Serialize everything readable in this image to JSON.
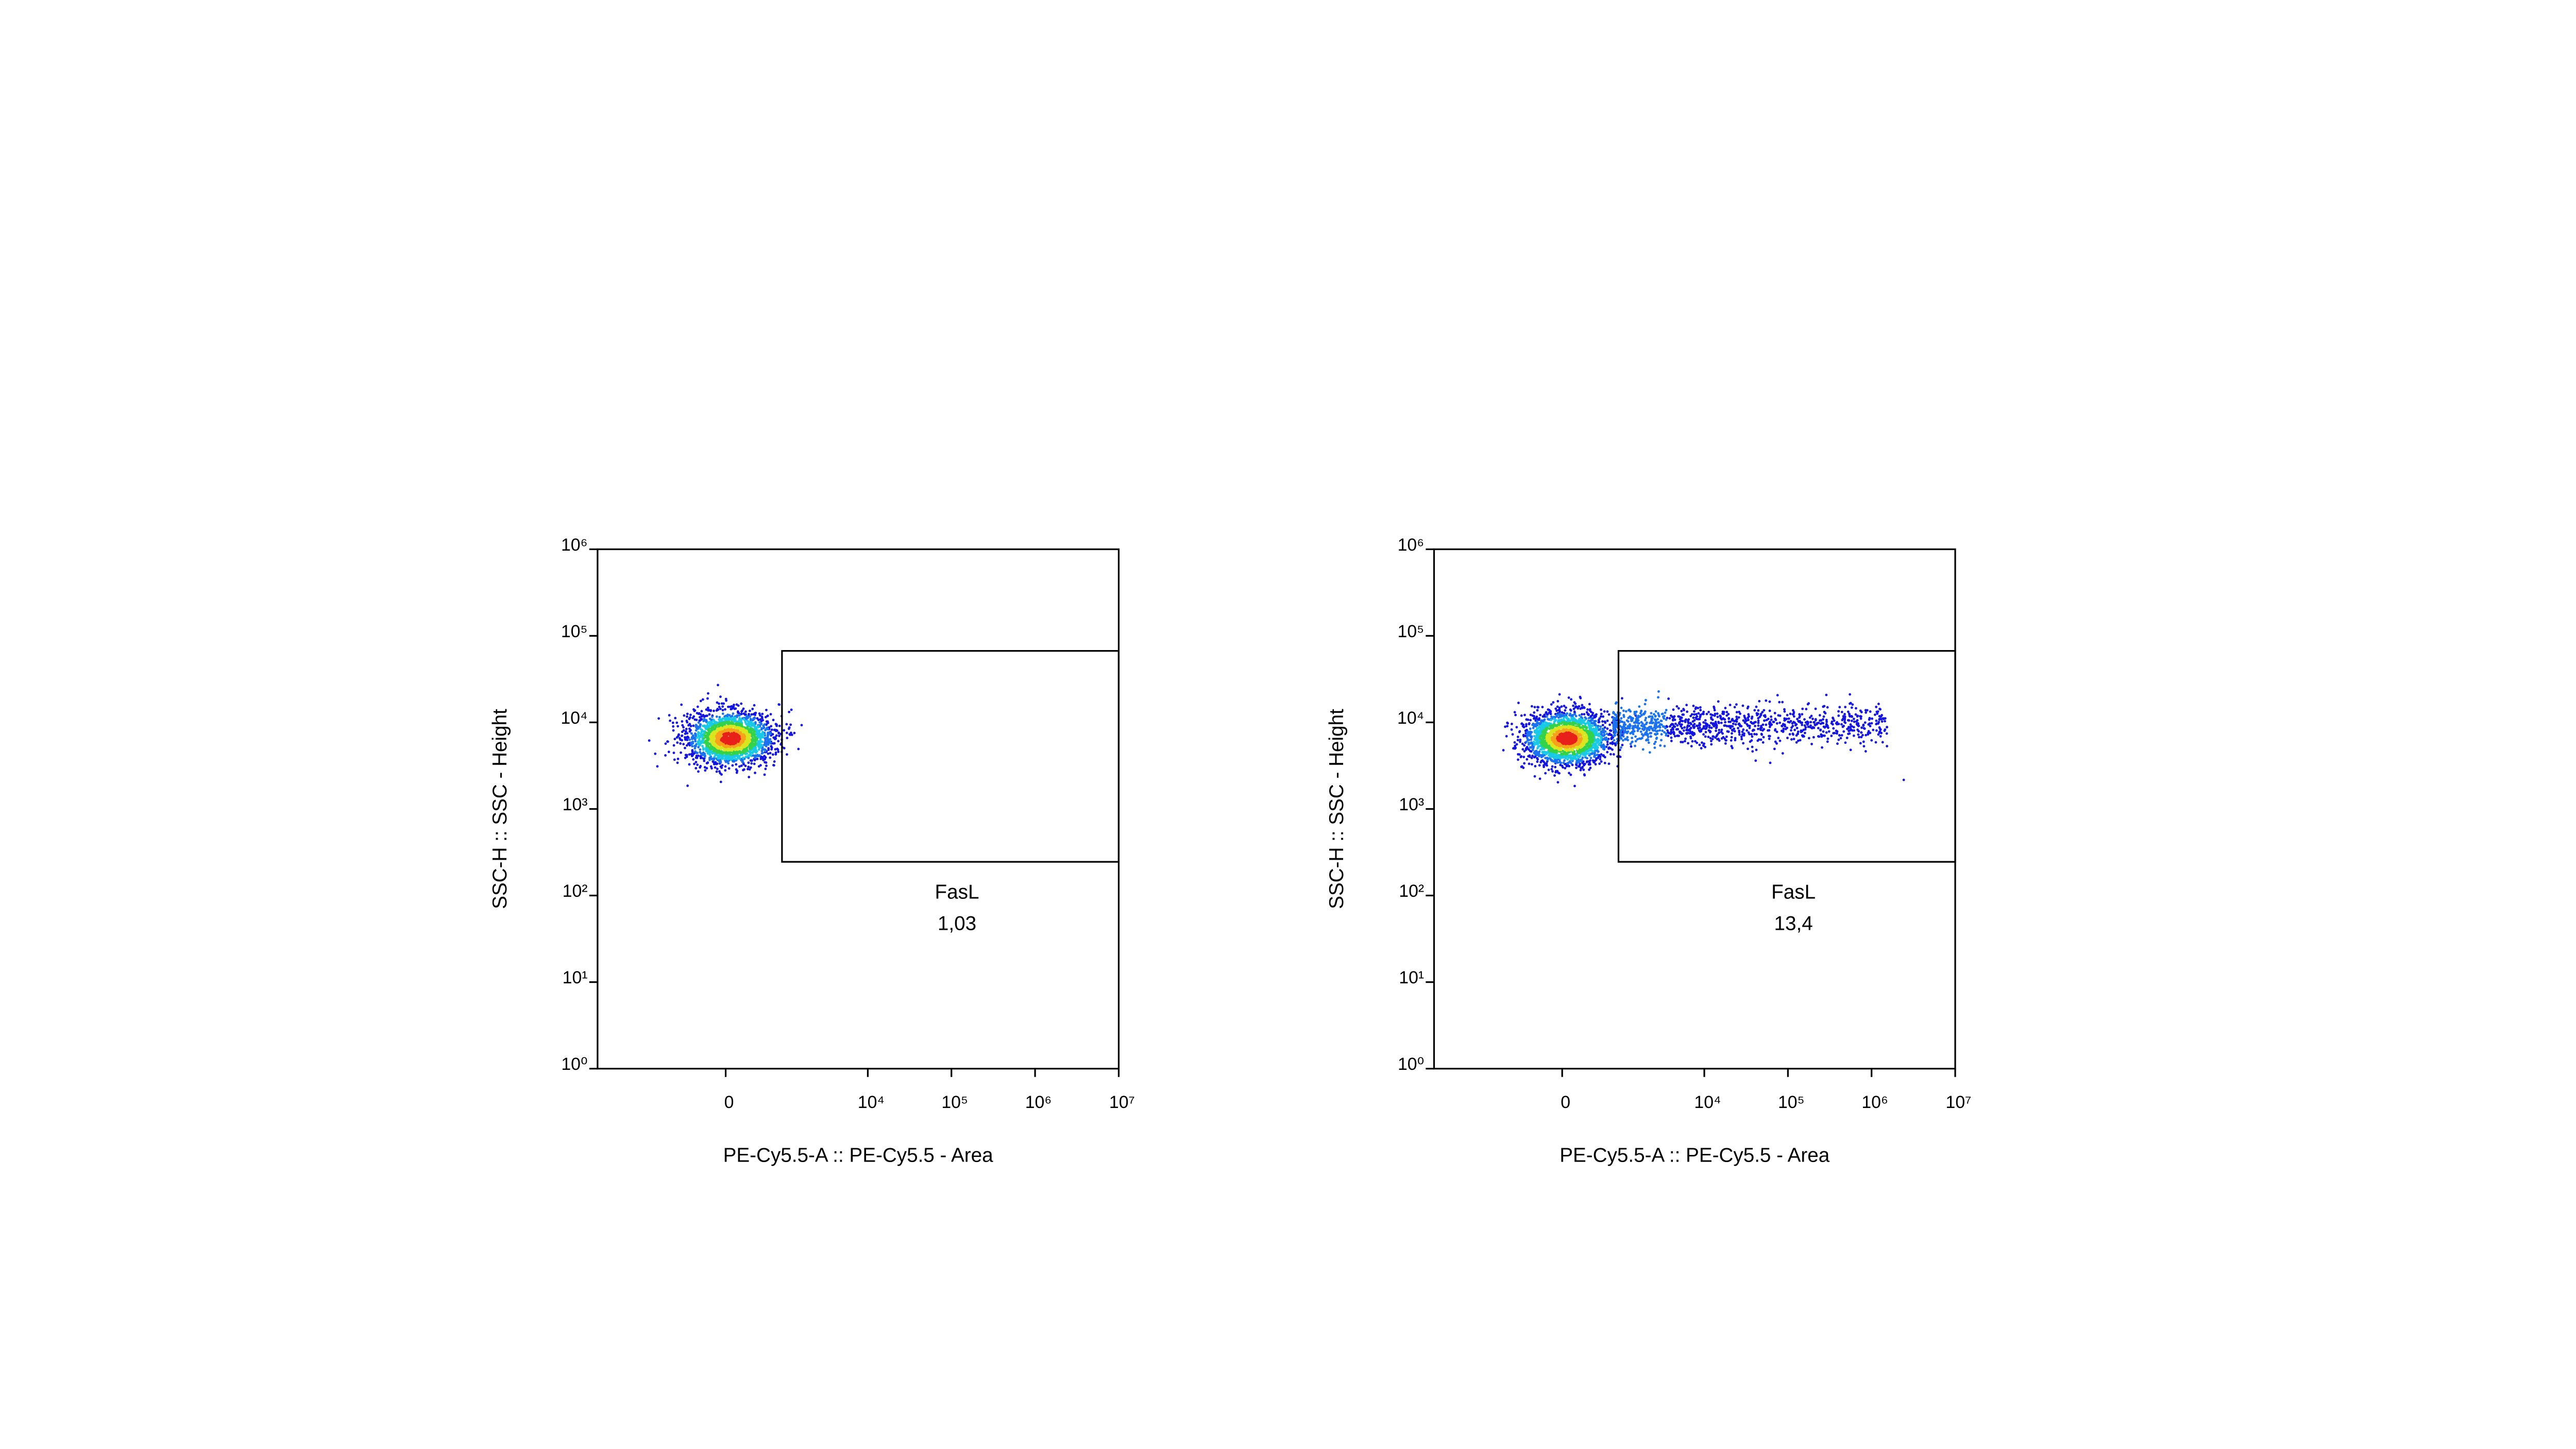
{
  "chart_data": [
    {
      "type": "scatter",
      "xlabel": "PE-Cy5.5-A :: PE-Cy5.5 - Area",
      "ylabel": "SSC-H :: SSC - Height",
      "xscale": "biexponential",
      "yscale": "log",
      "xlim": [
        -6800,
        10000000
      ],
      "ylim": [
        1,
        1000000
      ],
      "xticks": [
        0,
        {
          "value": 10000,
          "label": "10⁴"
        },
        {
          "value": 100000,
          "label": "10⁵"
        },
        {
          "value": 1000000,
          "label": "10⁶"
        },
        {
          "value": 10000000,
          "label": "10⁷"
        }
      ],
      "yticks": [
        {
          "value": 1,
          "label": "10⁰"
        },
        {
          "value": 10,
          "label": "10¹"
        },
        {
          "value": 100,
          "label": "10²"
        },
        {
          "value": 1000,
          "label": "10³"
        },
        {
          "value": 10000,
          "label": "10⁴"
        },
        {
          "value": 100000,
          "label": "10⁵"
        },
        {
          "value": 1000000,
          "label": "10⁶"
        }
      ],
      "gate": {
        "name": "FasL",
        "xlim": [
          900,
          10000000
        ],
        "ylim": [
          245,
          67000
        ],
        "value": 1.03,
        "value_label": "1,03"
      }
    },
    {
      "type": "scatter",
      "xlabel": "PE-Cy5.5-A :: PE-Cy5.5 - Area",
      "ylabel": "SSC-H :: SSC - Height",
      "xscale": "biexponential",
      "yscale": "log",
      "xlim": [
        -6800,
        10000000
      ],
      "ylim": [
        1,
        1000000
      ],
      "xticks": [
        0,
        {
          "value": 10000,
          "label": "10⁴"
        },
        {
          "value": 100000,
          "label": "10⁵"
        },
        {
          "value": 1000000,
          "label": "10⁶"
        },
        {
          "value": 10000000,
          "label": "10⁷"
        }
      ],
      "yticks": [
        {
          "value": 1,
          "label": "10⁰"
        },
        {
          "value": 10,
          "label": "10¹"
        },
        {
          "value": 100,
          "label": "10²"
        },
        {
          "value": 1000,
          "label": "10³"
        },
        {
          "value": 10000,
          "label": "10⁴"
        },
        {
          "value": 100000,
          "label": "10⁵"
        },
        {
          "value": 1000000,
          "label": "10⁶"
        }
      ],
      "gate": {
        "name": "FasL",
        "xlim": [
          900,
          10000000
        ],
        "ylim": [
          245,
          67000
        ],
        "value": 13.4,
        "value_label": "13,4"
      }
    }
  ]
}
